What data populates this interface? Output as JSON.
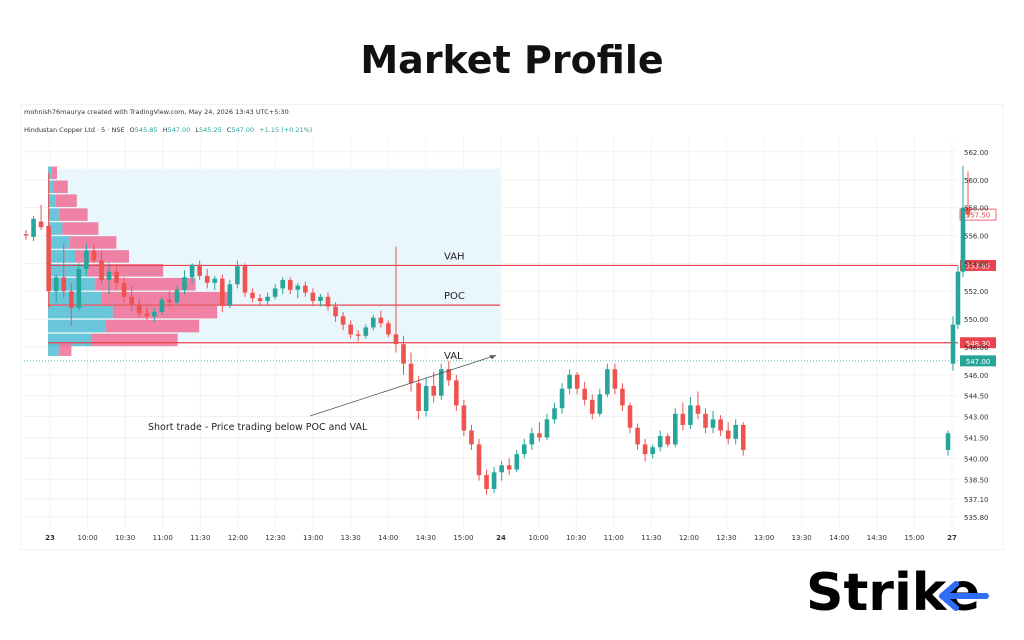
{
  "title": "Market Profile",
  "watermark": "mohnish76maurya created with TradingView.com, May 24, 2026 13:43 UTC+5:30",
  "symbol": {
    "name": "Hindustan Copper Ltd · 5 · NSE",
    "o_label": "O",
    "o_value": "545.85",
    "h_label": "H",
    "h_value": "547.00",
    "l_label": "L",
    "l_value": "545.25",
    "c_label": "C",
    "c_value": "547.00",
    "change": "+1.15 (+0.21%)"
  },
  "logo_text": "Strike",
  "colors": {
    "up": "#26a69a",
    "down": "#ef5350",
    "level_line": "#e8434f",
    "profile_up": "#5bc0d6",
    "profile_down": "#f0769a",
    "value_area": "#e9f6fb"
  },
  "chart_data": {
    "type": "candlestick",
    "ylim": [
      535.0,
      563.0
    ],
    "y_ticks": [
      "562.00",
      "560.00",
      "558.00",
      "556.00",
      "554.00",
      "552.00",
      "550.00",
      "548.00",
      "546.00",
      "544.50",
      "543.00",
      "541.50",
      "540.00",
      "538.50",
      "537.10",
      "535.80"
    ],
    "x_ticks": [
      "23",
      "10:00",
      "10:30",
      "11:00",
      "11:30",
      "12:00",
      "12:30",
      "13:00",
      "13:30",
      "14:00",
      "14:30",
      "15:00",
      "24",
      "10:00",
      "10:30",
      "11:00",
      "11:30",
      "12:00",
      "12:30",
      "13:00",
      "13:30",
      "14:00",
      "14:30",
      "15:00",
      "27"
    ],
    "levels": [
      {
        "label": "VAH",
        "price": 553.85,
        "tag": "553.85"
      },
      {
        "label": "POC",
        "price": 551.0
      },
      {
        "label": "VAL",
        "price": 548.3,
        "tag": "548.30"
      }
    ],
    "last_price_tag": "557.50",
    "current_price_tag": "547.00",
    "current_price": 547.0,
    "annotation": "Short trade - Price trading below POC and VAL",
    "profile": [
      {
        "price": 560.5,
        "up": 0.2,
        "down": 0.3
      },
      {
        "price": 559.5,
        "up": 0.3,
        "down": 0.8
      },
      {
        "price": 558.5,
        "up": 0.4,
        "down": 1.2
      },
      {
        "price": 557.5,
        "up": 0.6,
        "down": 1.6
      },
      {
        "price": 556.5,
        "up": 0.8,
        "down": 2.0
      },
      {
        "price": 555.5,
        "up": 1.2,
        "down": 2.6
      },
      {
        "price": 554.5,
        "up": 1.5,
        "down": 3.0
      },
      {
        "price": 553.5,
        "up": 2.2,
        "down": 4.2
      },
      {
        "price": 552.5,
        "up": 2.6,
        "down": 5.6
      },
      {
        "price": 551.5,
        "up": 3.0,
        "down": 7.2
      },
      {
        "price": 550.5,
        "up": 3.6,
        "down": 5.8
      },
      {
        "price": 549.5,
        "up": 3.2,
        "down": 5.2
      },
      {
        "price": 548.5,
        "up": 2.4,
        "down": 4.8
      },
      {
        "price": 547.8,
        "up": 0.6,
        "down": 0.7
      }
    ],
    "candles": [
      {
        "o": 556.1,
        "h": 556.4,
        "l": 555.7,
        "c": 556.0
      },
      {
        "o": 555.9,
        "h": 557.4,
        "l": 555.6,
        "c": 557.2
      },
      {
        "o": 557.0,
        "h": 558.2,
        "l": 556.4,
        "c": 556.6
      },
      {
        "o": 556.7,
        "h": 560.5,
        "l": 550.8,
        "c": 552.0
      },
      {
        "o": 552.0,
        "h": 553.2,
        "l": 551.2,
        "c": 553.0
      },
      {
        "o": 553.0,
        "h": 555.4,
        "l": 551.5,
        "c": 552.0
      },
      {
        "o": 552.0,
        "h": 552.6,
        "l": 549.5,
        "c": 550.8
      },
      {
        "o": 550.8,
        "h": 554.0,
        "l": 550.6,
        "c": 553.6
      },
      {
        "o": 553.6,
        "h": 555.4,
        "l": 553.1,
        "c": 554.9
      },
      {
        "o": 554.9,
        "h": 555.4,
        "l": 554.0,
        "c": 554.2
      },
      {
        "o": 554.2,
        "h": 554.9,
        "l": 552.5,
        "c": 552.8
      },
      {
        "o": 552.8,
        "h": 554.0,
        "l": 551.8,
        "c": 553.4
      },
      {
        "o": 553.4,
        "h": 553.9,
        "l": 552.1,
        "c": 552.6
      },
      {
        "o": 552.6,
        "h": 553.0,
        "l": 551.2,
        "c": 551.6
      },
      {
        "o": 551.6,
        "h": 552.4,
        "l": 550.6,
        "c": 551.0
      },
      {
        "o": 551.0,
        "h": 551.5,
        "l": 550.1,
        "c": 550.4
      },
      {
        "o": 550.4,
        "h": 550.9,
        "l": 549.9,
        "c": 550.2
      },
      {
        "o": 550.2,
        "h": 550.8,
        "l": 549.8,
        "c": 550.5
      },
      {
        "o": 550.5,
        "h": 551.6,
        "l": 550.3,
        "c": 551.4
      },
      {
        "o": 551.4,
        "h": 552.0,
        "l": 550.9,
        "c": 551.2
      },
      {
        "o": 551.2,
        "h": 552.4,
        "l": 551.0,
        "c": 552.1
      },
      {
        "o": 552.1,
        "h": 553.5,
        "l": 551.8,
        "c": 553.0
      },
      {
        "o": 553.0,
        "h": 554.0,
        "l": 552.6,
        "c": 553.9
      },
      {
        "o": 553.9,
        "h": 554.2,
        "l": 552.8,
        "c": 553.1
      },
      {
        "o": 553.1,
        "h": 553.6,
        "l": 552.2,
        "c": 552.6
      },
      {
        "o": 552.6,
        "h": 553.1,
        "l": 552.1,
        "c": 552.9
      },
      {
        "o": 552.9,
        "h": 553.2,
        "l": 550.5,
        "c": 551.0
      },
      {
        "o": 551.0,
        "h": 552.8,
        "l": 550.8,
        "c": 552.5
      },
      {
        "o": 552.5,
        "h": 554.2,
        "l": 552.2,
        "c": 553.8
      },
      {
        "o": 553.8,
        "h": 554.0,
        "l": 551.6,
        "c": 551.9
      },
      {
        "o": 551.9,
        "h": 552.2,
        "l": 551.2,
        "c": 551.5
      },
      {
        "o": 551.5,
        "h": 551.8,
        "l": 551.0,
        "c": 551.3
      },
      {
        "o": 551.3,
        "h": 551.9,
        "l": 551.0,
        "c": 551.6
      },
      {
        "o": 551.6,
        "h": 552.5,
        "l": 551.4,
        "c": 552.2
      },
      {
        "o": 552.2,
        "h": 553.0,
        "l": 551.8,
        "c": 552.8
      },
      {
        "o": 552.8,
        "h": 553.0,
        "l": 551.8,
        "c": 552.1
      },
      {
        "o": 552.1,
        "h": 552.6,
        "l": 551.5,
        "c": 552.4
      },
      {
        "o": 552.4,
        "h": 552.7,
        "l": 551.6,
        "c": 551.9
      },
      {
        "o": 551.9,
        "h": 552.2,
        "l": 551.0,
        "c": 551.3
      },
      {
        "o": 551.3,
        "h": 551.8,
        "l": 550.9,
        "c": 551.6
      },
      {
        "o": 551.6,
        "h": 551.9,
        "l": 550.6,
        "c": 550.9
      },
      {
        "o": 550.9,
        "h": 551.2,
        "l": 549.8,
        "c": 550.2
      },
      {
        "o": 550.2,
        "h": 550.5,
        "l": 549.2,
        "c": 549.6
      },
      {
        "o": 549.6,
        "h": 549.9,
        "l": 548.6,
        "c": 548.9
      },
      {
        "o": 548.9,
        "h": 549.2,
        "l": 548.4,
        "c": 548.8
      },
      {
        "o": 548.8,
        "h": 549.6,
        "l": 548.6,
        "c": 549.4
      },
      {
        "o": 549.4,
        "h": 550.3,
        "l": 549.2,
        "c": 550.1
      },
      {
        "o": 550.1,
        "h": 550.6,
        "l": 549.4,
        "c": 549.7
      },
      {
        "o": 549.7,
        "h": 549.9,
        "l": 548.7,
        "c": 548.9
      },
      {
        "o": 548.9,
        "h": 555.2,
        "l": 547.6,
        "c": 548.2
      },
      {
        "o": 548.2,
        "h": 548.8,
        "l": 546.0,
        "c": 546.8
      },
      {
        "o": 546.8,
        "h": 547.6,
        "l": 544.8,
        "c": 545.4
      },
      {
        "o": 545.4,
        "h": 545.9,
        "l": 542.8,
        "c": 543.4
      },
      {
        "o": 543.4,
        "h": 545.8,
        "l": 543.0,
        "c": 545.2
      },
      {
        "o": 545.2,
        "h": 546.2,
        "l": 544.0,
        "c": 544.5
      },
      {
        "o": 544.5,
        "h": 546.8,
        "l": 544.2,
        "c": 546.4
      },
      {
        "o": 546.4,
        "h": 547.0,
        "l": 545.2,
        "c": 545.6
      },
      {
        "o": 545.6,
        "h": 546.0,
        "l": 543.4,
        "c": 543.8
      },
      {
        "o": 543.8,
        "h": 544.2,
        "l": 541.6,
        "c": 542.0
      },
      {
        "o": 542.0,
        "h": 542.4,
        "l": 540.6,
        "c": 541.0
      },
      {
        "o": 541.0,
        "h": 541.4,
        "l": 538.4,
        "c": 538.8
      },
      {
        "o": 538.8,
        "h": 539.2,
        "l": 537.4,
        "c": 537.8
      },
      {
        "o": 537.8,
        "h": 539.4,
        "l": 537.5,
        "c": 539.0
      },
      {
        "o": 539.0,
        "h": 539.8,
        "l": 538.4,
        "c": 539.5
      },
      {
        "o": 539.5,
        "h": 540.0,
        "l": 538.8,
        "c": 539.2
      },
      {
        "o": 539.2,
        "h": 540.6,
        "l": 539.0,
        "c": 540.3
      },
      {
        "o": 540.3,
        "h": 541.4,
        "l": 540.0,
        "c": 541.0
      },
      {
        "o": 541.0,
        "h": 542.2,
        "l": 540.6,
        "c": 541.8
      },
      {
        "o": 541.8,
        "h": 542.6,
        "l": 541.2,
        "c": 541.5
      },
      {
        "o": 541.5,
        "h": 543.2,
        "l": 541.3,
        "c": 542.8
      },
      {
        "o": 542.8,
        "h": 544.0,
        "l": 542.5,
        "c": 543.6
      },
      {
        "o": 543.6,
        "h": 545.4,
        "l": 543.2,
        "c": 545.0
      },
      {
        "o": 545.0,
        "h": 546.4,
        "l": 544.6,
        "c": 546.0
      },
      {
        "o": 546.0,
        "h": 546.2,
        "l": 544.6,
        "c": 545.0
      },
      {
        "o": 545.0,
        "h": 545.5,
        "l": 543.8,
        "c": 544.2
      },
      {
        "o": 544.2,
        "h": 544.6,
        "l": 542.8,
        "c": 543.2
      },
      {
        "o": 543.2,
        "h": 545.0,
        "l": 543.0,
        "c": 544.6
      },
      {
        "o": 544.6,
        "h": 546.8,
        "l": 544.4,
        "c": 546.4
      },
      {
        "o": 546.4,
        "h": 546.8,
        "l": 544.6,
        "c": 545.0
      },
      {
        "o": 545.0,
        "h": 545.4,
        "l": 543.4,
        "c": 543.8
      },
      {
        "o": 543.8,
        "h": 544.0,
        "l": 541.8,
        "c": 542.2
      },
      {
        "o": 542.2,
        "h": 542.5,
        "l": 540.6,
        "c": 541.0
      },
      {
        "o": 541.0,
        "h": 541.4,
        "l": 539.8,
        "c": 540.3
      },
      {
        "o": 540.3,
        "h": 541.0,
        "l": 540.0,
        "c": 540.8
      },
      {
        "o": 540.8,
        "h": 542.0,
        "l": 540.5,
        "c": 541.6
      },
      {
        "o": 541.6,
        "h": 541.8,
        "l": 540.8,
        "c": 541.0
      },
      {
        "o": 541.0,
        "h": 543.6,
        "l": 540.8,
        "c": 543.2
      },
      {
        "o": 543.2,
        "h": 544.0,
        "l": 542.0,
        "c": 542.4
      },
      {
        "o": 542.4,
        "h": 544.4,
        "l": 542.1,
        "c": 543.8
      },
      {
        "o": 543.8,
        "h": 544.8,
        "l": 542.8,
        "c": 543.2
      },
      {
        "o": 543.2,
        "h": 543.6,
        "l": 541.8,
        "c": 542.2
      },
      {
        "o": 542.2,
        "h": 543.4,
        "l": 541.8,
        "c": 542.8
      },
      {
        "o": 542.8,
        "h": 543.1,
        "l": 541.6,
        "c": 542.0
      },
      {
        "o": 542.0,
        "h": 542.6,
        "l": 541.0,
        "c": 541.4
      },
      {
        "o": 541.4,
        "h": 542.8,
        "l": 541.0,
        "c": 542.4
      },
      {
        "o": 542.4,
        "h": 542.6,
        "l": 540.2,
        "c": 540.6
      },
      {
        "o": 540.6,
        "h": 542.0,
        "l": 540.2,
        "c": 541.8
      },
      {
        "o": 546.8,
        "h": 550.2,
        "l": 546.3,
        "c": 549.6
      },
      {
        "o": 549.6,
        "h": 553.8,
        "l": 549.3,
        "c": 553.4
      },
      {
        "o": 553.4,
        "h": 561.0,
        "l": 553.0,
        "c": 558.0
      },
      {
        "o": 558.0,
        "h": 560.6,
        "l": 557.3,
        "c": 557.5
      }
    ]
  }
}
